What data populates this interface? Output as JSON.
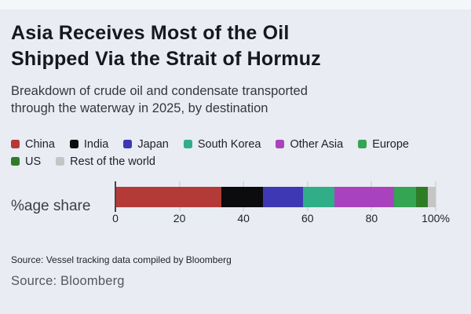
{
  "title_lines": [
    "Asia Receives Most of the Oil",
    "Shipped Via the Strait of Hormuz"
  ],
  "subtitle_lines": [
    "Breakdown of crude oil and condensate transported",
    "through the waterway in 2025, by destination"
  ],
  "source_note": "Source: Vessel tracking data compiled by Bloomberg",
  "source_footer": "Source: Bloomberg",
  "background_color": "#e9ecf2",
  "chart_data": {
    "type": "bar",
    "variant": "stacked-horizontal",
    "title": "Asia Receives Most of the Oil Shipped Via the Strait of Hormuz",
    "subtitle": "Breakdown of crude oil and condensate transported through the waterway in 2025, by destination",
    "ylabel": "%age share",
    "unit": "%",
    "xlim": [
      0,
      100
    ],
    "xtick_values": [
      0,
      20,
      40,
      60,
      80,
      100
    ],
    "xtick_labels": [
      "0",
      "20",
      "40",
      "60",
      "80",
      "100%"
    ],
    "legend_position": "top",
    "legend_rows": [
      6,
      2
    ],
    "grid": "ticks-only",
    "series": [
      {
        "name": "China",
        "value": 33,
        "color": "#b43a37"
      },
      {
        "name": "India",
        "value": 13,
        "color": "#0c0c0e"
      },
      {
        "name": "Japan",
        "value": 12.5,
        "color": "#3e38b4"
      },
      {
        "name": "South Korea",
        "value": 10,
        "color": "#2fae88"
      },
      {
        "name": "Other Asia",
        "value": 18.5,
        "color": "#a943bd"
      },
      {
        "name": "Europe",
        "value": 7,
        "color": "#34a552"
      },
      {
        "name": "US",
        "value": 3.5,
        "color": "#2f7c27"
      },
      {
        "name": "Rest of the world",
        "value": 2.5,
        "color": "#c5c6c4"
      }
    ]
  }
}
